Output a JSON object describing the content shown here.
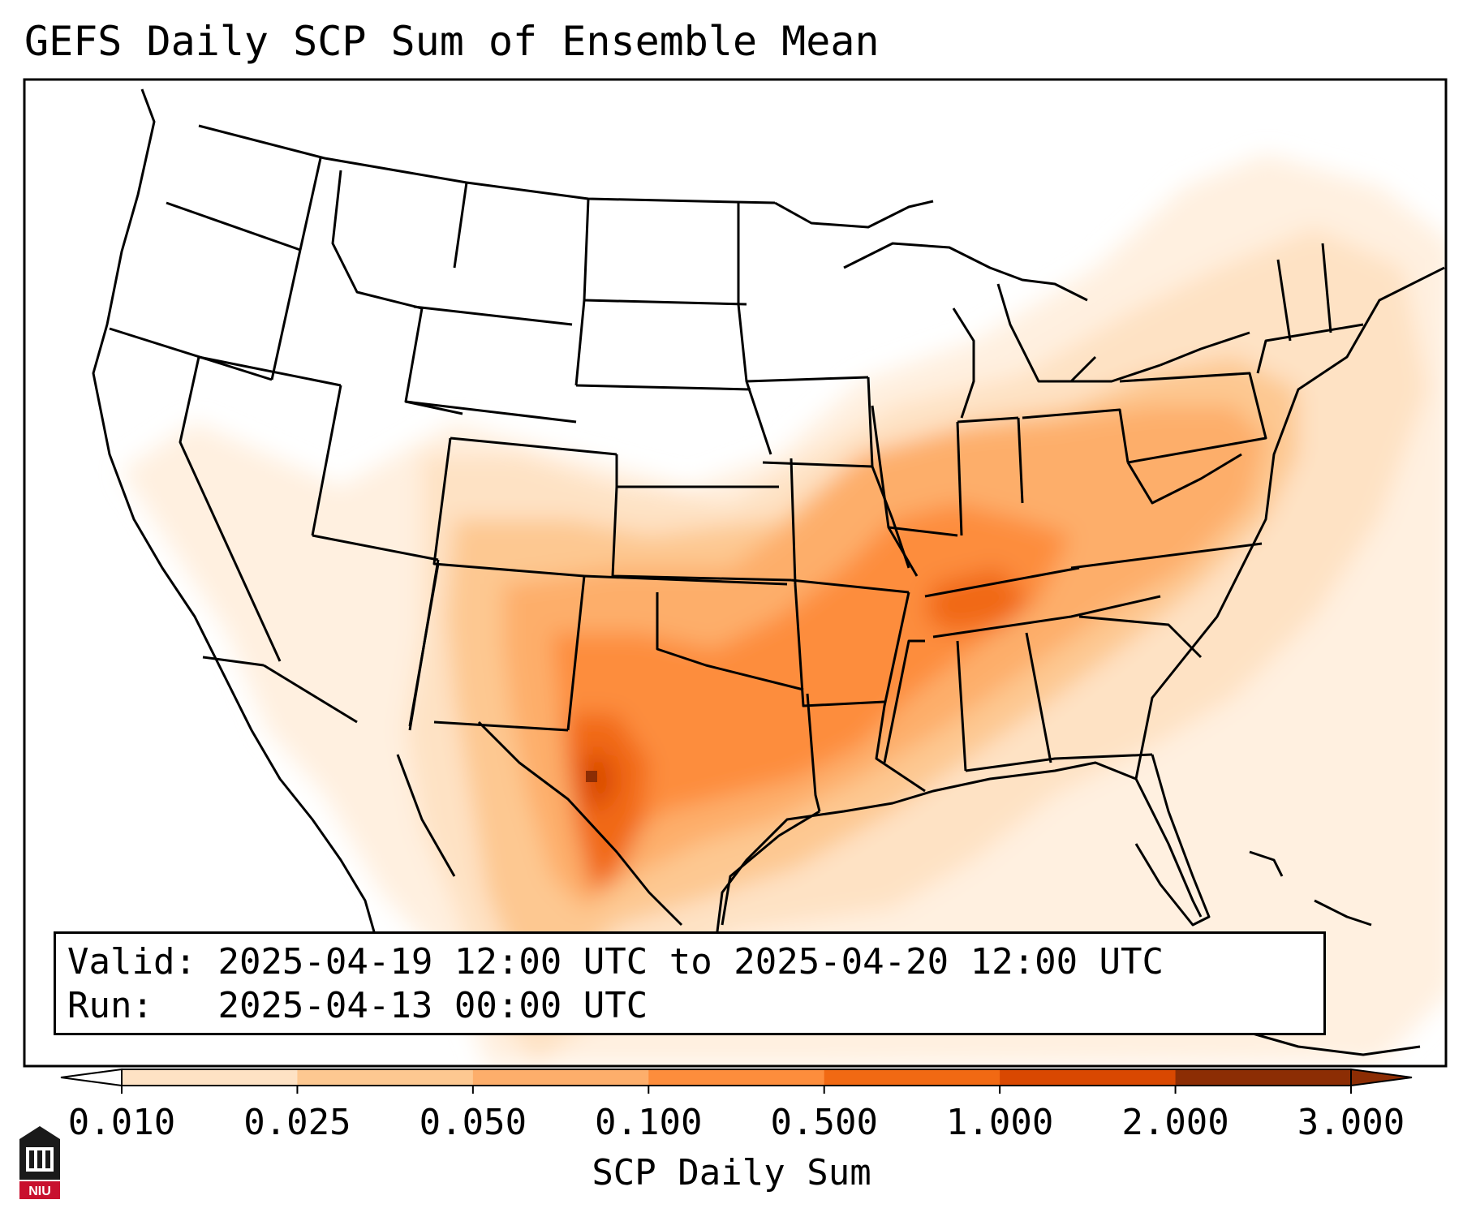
{
  "title": "GEFS Daily SCP Sum of Ensemble Mean",
  "info": {
    "valid_label": "Valid:",
    "valid_value": "2025-04-19 12:00 UTC to 2025-04-20 12:00 UTC",
    "run_label": "Run:",
    "run_value": "2025-04-13 00:00 UTC"
  },
  "colorbar": {
    "label": "SCP Daily Sum",
    "ticks": [
      "0.010",
      "0.025",
      "0.050",
      "0.100",
      "0.500",
      "1.000",
      "2.000",
      "3.000"
    ],
    "colors": [
      "#fff3e6",
      "#fee2c4",
      "#fdc891",
      "#fdae6b",
      "#fd8d3c",
      "#f16913",
      "#d94801",
      "#8c2d04"
    ]
  },
  "logo": {
    "text": "NIU"
  }
}
